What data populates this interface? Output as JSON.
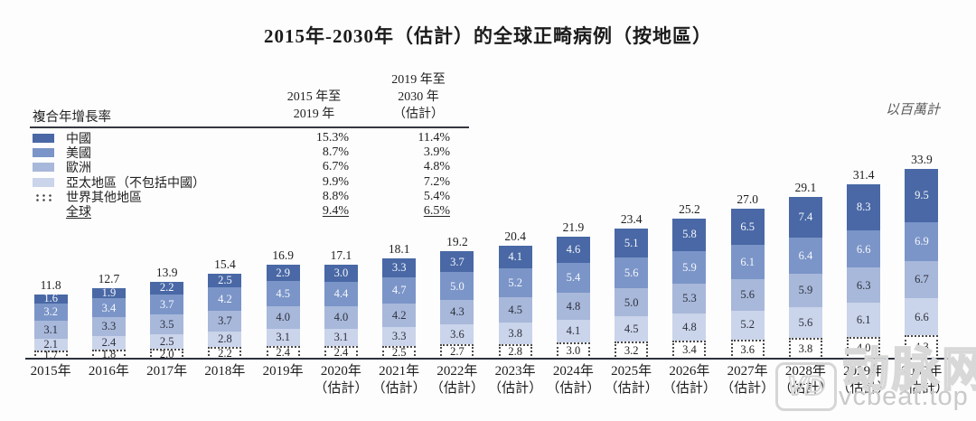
{
  "title": "2015年-2030年（估計）的全球正畸病例（按地區）",
  "unit_note": "以百萬計",
  "legend": {
    "heading": "複合年增長率",
    "col1_header": [
      "2015 年至",
      "2019 年"
    ],
    "col2_header": [
      "2019 年至",
      "2030 年",
      "（估計）"
    ],
    "rows": [
      {
        "label": "中國",
        "swatch": "solid",
        "color": "#4968a5",
        "cagr_2015_2019": "15.3%",
        "cagr_2019_2030": "11.4%",
        "underline": false
      },
      {
        "label": "美國",
        "swatch": "solid",
        "color": "#7b95c8",
        "cagr_2015_2019": "8.7%",
        "cagr_2019_2030": "3.9%",
        "underline": false
      },
      {
        "label": "歐洲",
        "swatch": "solid",
        "color": "#a8b8da",
        "cagr_2015_2019": "6.7%",
        "cagr_2019_2030": "4.8%",
        "underline": false
      },
      {
        "label": "亞太地區（不包括中國）",
        "swatch": "solid",
        "color": "#cad4ea",
        "cagr_2015_2019": "9.9%",
        "cagr_2019_2030": "7.2%",
        "underline": false
      },
      {
        "label": "世界其他地區",
        "swatch": "dots",
        "color": "#ffffff",
        "cagr_2015_2019": "8.8%",
        "cagr_2019_2030": "5.4%",
        "underline": false
      },
      {
        "label": "全球",
        "swatch": "none",
        "color": "",
        "cagr_2015_2019": "9.4%",
        "cagr_2019_2030": "6.5%",
        "underline": true
      }
    ]
  },
  "chart_data": {
    "type": "bar",
    "subtype": "stacked",
    "unit": "millions",
    "categories": [
      "2015年",
      "2016年",
      "2017年",
      "2018年",
      "2019年",
      "2020年",
      "2021年",
      "2022年",
      "2023年",
      "2024年",
      "2025年",
      "2026年",
      "2027年",
      "2028年",
      "2029年",
      "2030年"
    ],
    "estimated_from_index": 5,
    "estimate_suffix": "（估計）",
    "totals": [
      11.8,
      12.7,
      13.9,
      15.4,
      16.9,
      17.1,
      18.1,
      19.2,
      20.4,
      21.9,
      23.4,
      25.2,
      27.0,
      29.1,
      31.4,
      33.9
    ],
    "series": [
      {
        "name": "中國",
        "key": "china",
        "color": "#4968a5",
        "text_color": "#f6f8fc",
        "values": [
          1.6,
          1.9,
          2.2,
          2.5,
          2.9,
          3.0,
          3.3,
          3.7,
          4.1,
          4.6,
          5.1,
          5.8,
          6.5,
          7.4,
          8.3,
          9.5
        ]
      },
      {
        "name": "美國",
        "key": "us",
        "color": "#7b95c8",
        "text_color": "#f6f8fc",
        "values": [
          3.2,
          3.4,
          3.7,
          4.2,
          4.5,
          4.4,
          4.7,
          5.0,
          5.2,
          5.4,
          5.6,
          5.9,
          6.1,
          6.4,
          6.6,
          6.9
        ]
      },
      {
        "name": "歐洲",
        "key": "europe",
        "color": "#a8b8da",
        "text_color": "#2c303d",
        "values": [
          3.1,
          3.3,
          3.5,
          3.7,
          4.0,
          4.0,
          4.2,
          4.3,
          4.5,
          4.8,
          5.0,
          5.3,
          5.6,
          5.9,
          6.3,
          6.7
        ]
      },
      {
        "name": "亞太地區（不包括中國）",
        "key": "apac",
        "color": "#cad4ea",
        "text_color": "#2c303d",
        "values": [
          2.1,
          2.4,
          2.5,
          2.8,
          3.1,
          3.1,
          3.3,
          3.6,
          3.8,
          4.1,
          4.5,
          4.8,
          5.2,
          5.6,
          6.1,
          6.6
        ]
      },
      {
        "name": "世界其他地區",
        "key": "row",
        "color": "#ffffff",
        "pattern": "dotted",
        "text_color": "#222222",
        "values": [
          1.7,
          1.8,
          2.0,
          2.2,
          2.4,
          2.4,
          2.5,
          2.7,
          2.8,
          3.0,
          3.2,
          3.4,
          3.6,
          3.8,
          4.0,
          4.3
        ]
      }
    ],
    "ylim": [
      0,
      34
    ],
    "grid": false,
    "legend_position": "top-left"
  },
  "watermark": {
    "logo_initials": "VD",
    "logo_text": "动脉网",
    "url_text": "vcbeat.top"
  }
}
